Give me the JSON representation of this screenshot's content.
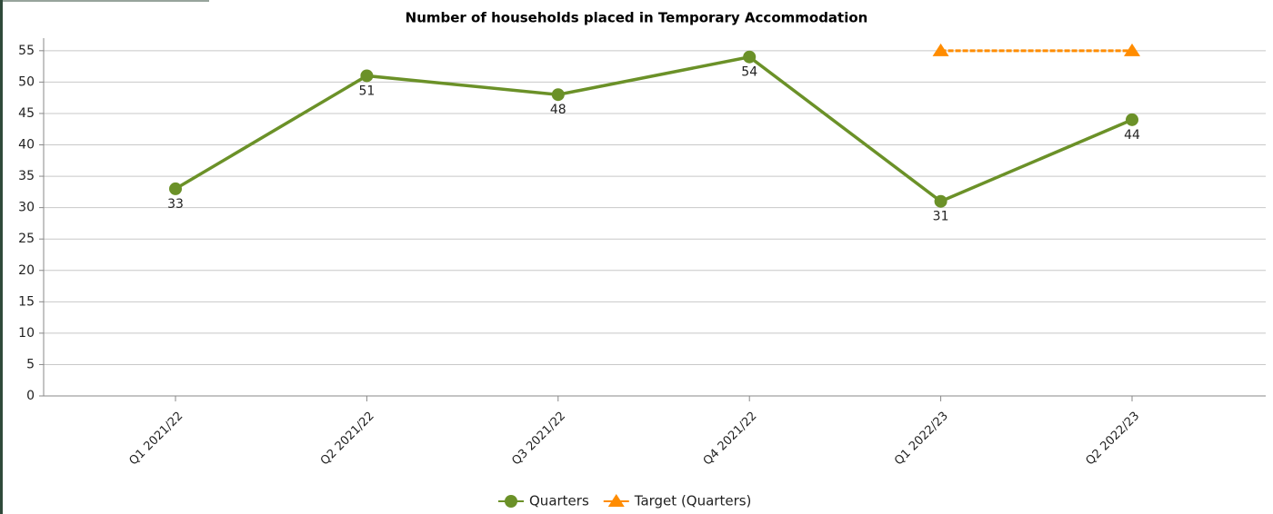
{
  "chart_data": {
    "type": "line",
    "title": "Number of households placed in Temporary Accommodation",
    "categories": [
      "Q1 2021/22",
      "Q2 2021/22",
      "Q3 2021/22",
      "Q4 2021/22",
      "Q1 2022/23",
      "Q2 2022/23"
    ],
    "series": [
      {
        "name": "Quarters",
        "color": "#6b9128",
        "values": [
          33,
          51,
          48,
          54,
          31,
          44
        ],
        "marker": "circle",
        "data_labels": true
      },
      {
        "name": "Target (Quarters)",
        "color": "#ff8c00",
        "values": [
          null,
          null,
          null,
          null,
          55,
          55
        ],
        "marker": "triangle",
        "dashed": true
      }
    ],
    "ylim": [
      0,
      57
    ],
    "yticks": [
      0,
      5,
      10,
      15,
      20,
      25,
      30,
      35,
      40,
      45,
      50,
      55
    ],
    "grid": true,
    "legend": "bottom"
  }
}
